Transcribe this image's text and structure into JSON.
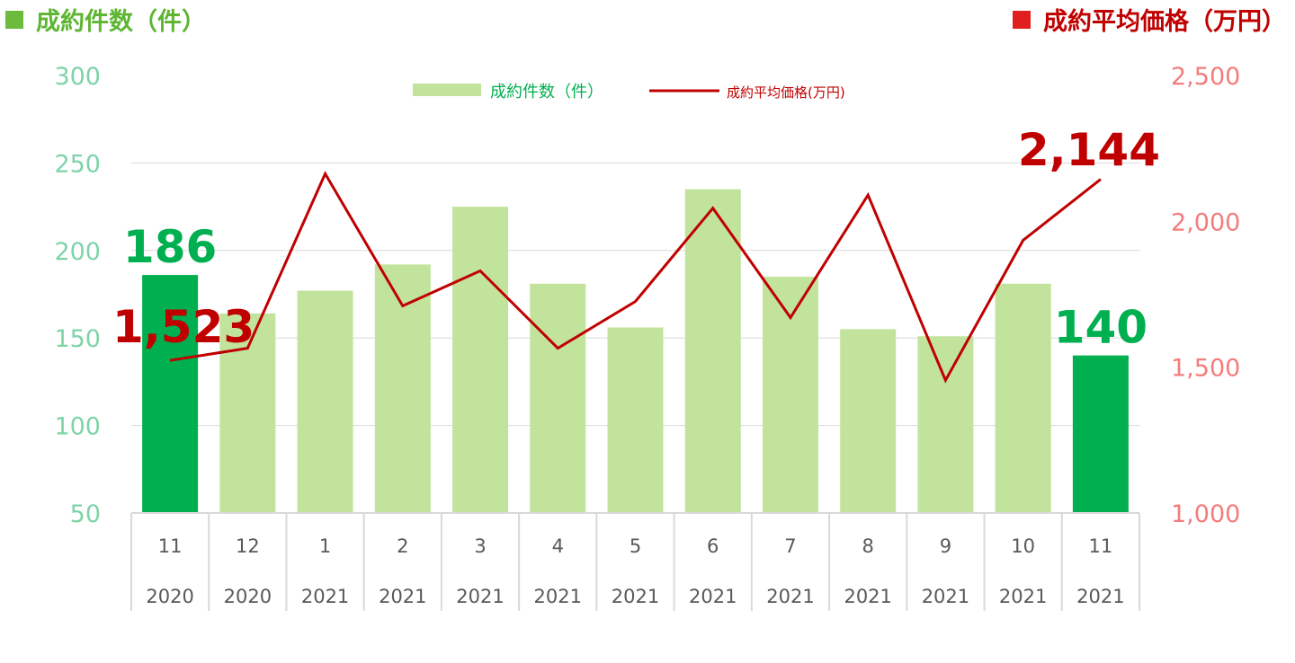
{
  "header": {
    "left_title": "成約件数（件）",
    "right_title": "成約平均価格（万円）"
  },
  "colors": {
    "bar": "#C2E39C",
    "bar_highlight": "#00AF50",
    "line": "#C00000",
    "left_axis": "#7ED4A8",
    "right_axis": "#F47C7C",
    "grid": "#D9D9D9",
    "category_text": "#595959",
    "highlight_bar_label": "#00AF50",
    "highlight_line_label": "#C00000"
  },
  "chart_data": {
    "type": "bar",
    "categories": [
      {
        "month": "11",
        "year": "2020"
      },
      {
        "month": "12",
        "year": "2020"
      },
      {
        "month": "1",
        "year": "2021"
      },
      {
        "month": "2",
        "year": "2021"
      },
      {
        "month": "3",
        "year": "2021"
      },
      {
        "month": "4",
        "year": "2021"
      },
      {
        "month": "5",
        "year": "2021"
      },
      {
        "month": "6",
        "year": "2021"
      },
      {
        "month": "7",
        "year": "2021"
      },
      {
        "month": "8",
        "year": "2021"
      },
      {
        "month": "9",
        "year": "2021"
      },
      {
        "month": "10",
        "year": "2021"
      },
      {
        "month": "11",
        "year": "2021"
      }
    ],
    "series": [
      {
        "name": "成約件数（件）",
        "type": "bar",
        "axis": "left",
        "values": [
          186,
          164,
          177,
          192,
          225,
          181,
          156,
          235,
          185,
          155,
          151,
          181,
          140
        ]
      },
      {
        "name": "成約平均価格(万円)",
        "type": "line",
        "axis": "right",
        "values": [
          1523,
          1565,
          2163,
          1710,
          1830,
          1565,
          1725,
          2045,
          1670,
          2090,
          1455,
          1935,
          2144
        ]
      }
    ],
    "highlight_indices": [
      0,
      12
    ],
    "value_labels": {
      "bar_first": "186",
      "bar_last": "140",
      "line_first": "1,523",
      "line_last": "2,144"
    },
    "left_axis": {
      "ylim": [
        50,
        300
      ],
      "ticks": [
        "300",
        "250",
        "200",
        "150",
        "100",
        "50"
      ]
    },
    "right_axis": {
      "ylim": [
        1000,
        2500
      ],
      "ticks": [
        "2,500",
        "2,000",
        "1,500",
        "1,000"
      ]
    },
    "grid": true,
    "legend": {
      "position": "top-center"
    }
  }
}
